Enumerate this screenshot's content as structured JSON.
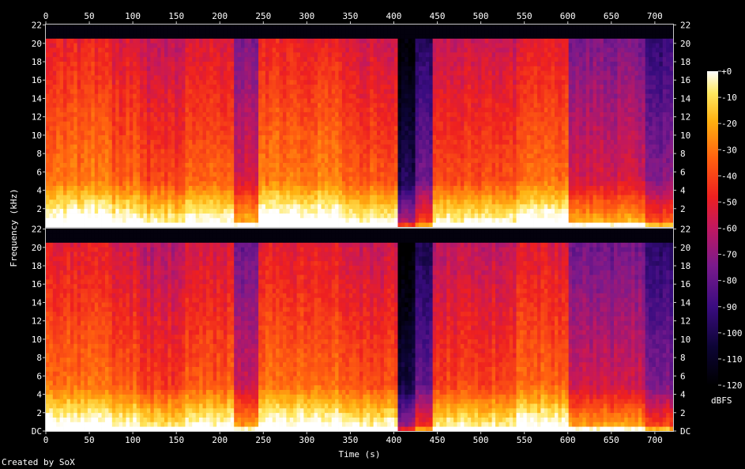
{
  "chart_data": {
    "type": "heatmap",
    "title": "",
    "xlabel": "Time (s)",
    "ylabel": "Frequency (kHz)",
    "xlim": [
      0,
      721
    ],
    "ylim_khz": [
      0,
      22.05
    ],
    "x_ticks": [
      0,
      50,
      100,
      150,
      200,
      250,
      300,
      350,
      400,
      450,
      500,
      550,
      600,
      650,
      700
    ],
    "y_ticks": [
      {
        "value": 0,
        "label": "DC"
      },
      {
        "value": 2,
        "label": "2"
      },
      {
        "value": 4,
        "label": "4"
      },
      {
        "value": 6,
        "label": "6"
      },
      {
        "value": 8,
        "label": "8"
      },
      {
        "value": 10,
        "label": "10"
      },
      {
        "value": 12,
        "label": "12"
      },
      {
        "value": 14,
        "label": "14"
      },
      {
        "value": 16,
        "label": "16"
      },
      {
        "value": 18,
        "label": "18"
      },
      {
        "value": 20,
        "label": "20"
      },
      {
        "value": 22,
        "label": "22"
      }
    ],
    "channels": 2,
    "lowpass_cutoff_khz": 20,
    "colorbar": {
      "unit_label": "dBFS",
      "range": [
        -120,
        0
      ],
      "ticks": [
        "+0",
        "-10",
        "-20",
        "-30",
        "-40",
        "-50",
        "-60",
        "-70",
        "-80",
        "-90",
        "-100",
        "-110",
        "-120"
      ]
    },
    "segments": [
      {
        "t0": 0,
        "t1": 75,
        "level": 0.82
      },
      {
        "t0": 75,
        "t1": 110,
        "level": 0.78
      },
      {
        "t0": 110,
        "t1": 160,
        "level": 0.72
      },
      {
        "t0": 160,
        "t1": 215,
        "level": 0.78
      },
      {
        "t0": 215,
        "t1": 246,
        "level": 0.6
      },
      {
        "t0": 246,
        "t1": 340,
        "level": 0.82
      },
      {
        "t0": 340,
        "t1": 405,
        "level": 0.76
      },
      {
        "t0": 405,
        "t1": 425,
        "level": 0.22
      },
      {
        "t0": 425,
        "t1": 445,
        "level": 0.4
      },
      {
        "t0": 445,
        "t1": 540,
        "level": 0.74
      },
      {
        "t0": 540,
        "t1": 600,
        "level": 0.8
      },
      {
        "t0": 600,
        "t1": 690,
        "level": 0.6
      },
      {
        "t0": 690,
        "t1": 721,
        "level": 0.45
      }
    ],
    "colors": {
      "background": "#000000",
      "axis": "#c8c8c8"
    }
  },
  "credit": "Created by SoX"
}
